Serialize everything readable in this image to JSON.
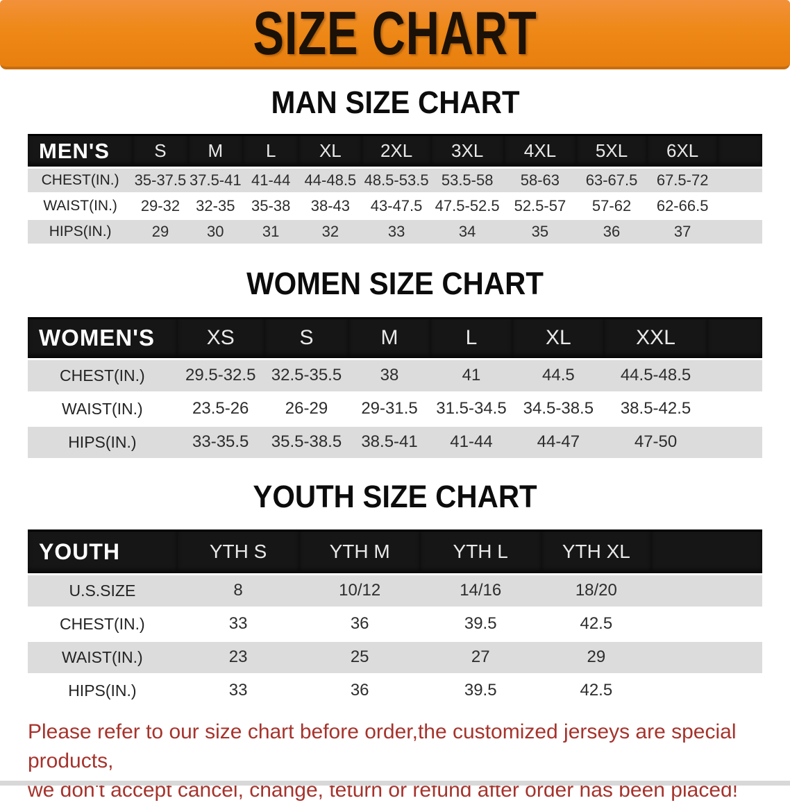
{
  "banner": {
    "title": "SIZE CHART",
    "bg_color": "#EE8817",
    "text_color": "#1B1106"
  },
  "sections": [
    {
      "heading": "MAN SIZE CHART",
      "table": {
        "header_label": "MEN'S",
        "columns": [
          "S",
          "M",
          "L",
          "XL",
          "2XL",
          "3XL",
          "4XL",
          "5XL",
          "6XL"
        ],
        "rows": [
          {
            "label": "CHEST(IN.)",
            "values": [
              "35-37.5",
              "37.5-41",
              "41-44",
              "44-48.5",
              "48.5-53.5",
              "53.5-58",
              "58-63",
              "63-67.5",
              "67.5-72"
            ]
          },
          {
            "label": "WAIST(IN.)",
            "values": [
              "29-32",
              "32-35",
              "35-38",
              "38-43",
              "43-47.5",
              "47.5-52.5",
              "52.5-57",
              "57-62",
              "62-66.5"
            ]
          },
          {
            "label": "HIPS(IN.)",
            "values": [
              "29",
              "30",
              "31",
              "32",
              "33",
              "34",
              "35",
              "36",
              "37"
            ]
          }
        ]
      }
    },
    {
      "heading": "WOMEN SIZE CHART",
      "table": {
        "header_label": "WOMEN'S",
        "columns": [
          "XS",
          "S",
          "M",
          "L",
          "XL",
          "XXL"
        ],
        "rows": [
          {
            "label": "CHEST(IN.)",
            "values": [
              "29.5-32.5",
              "32.5-35.5",
              "38",
              "41",
              "44.5",
              "44.5-48.5"
            ]
          },
          {
            "label": "WAIST(IN.)",
            "values": [
              "23.5-26",
              "26-29",
              "29-31.5",
              "31.5-34.5",
              "34.5-38.5",
              "38.5-42.5"
            ]
          },
          {
            "label": "HIPS(IN.)",
            "values": [
              "33-35.5",
              "35.5-38.5",
              "38.5-41",
              "41-44",
              "44-47",
              "47-50"
            ]
          }
        ]
      }
    },
    {
      "heading": "YOUTH SIZE CHART",
      "table": {
        "header_label": "YOUTH",
        "columns": [
          "YTH S",
          "YTH M",
          "YTH L",
          "YTH XL"
        ],
        "rows": [
          {
            "label": "U.S.SIZE",
            "values": [
              "8",
              "10/12",
              "14/16",
              "18/20"
            ]
          },
          {
            "label": "CHEST(IN.)",
            "values": [
              "33",
              "36",
              "39.5",
              "42.5"
            ]
          },
          {
            "label": "WAIST(IN.)",
            "values": [
              "23",
              "25",
              "27",
              "29"
            ]
          },
          {
            "label": "HIPS(IN.)",
            "values": [
              "33",
              "36",
              "39.5",
              "42.5"
            ]
          }
        ]
      }
    }
  ],
  "disclaimer": {
    "line1": "Please refer to our size chart before order,the customized jerseys are special products,",
    "line2": "we don't accept cancel, change, teturn or refund after order has been placed!",
    "color": "#A6332C"
  }
}
